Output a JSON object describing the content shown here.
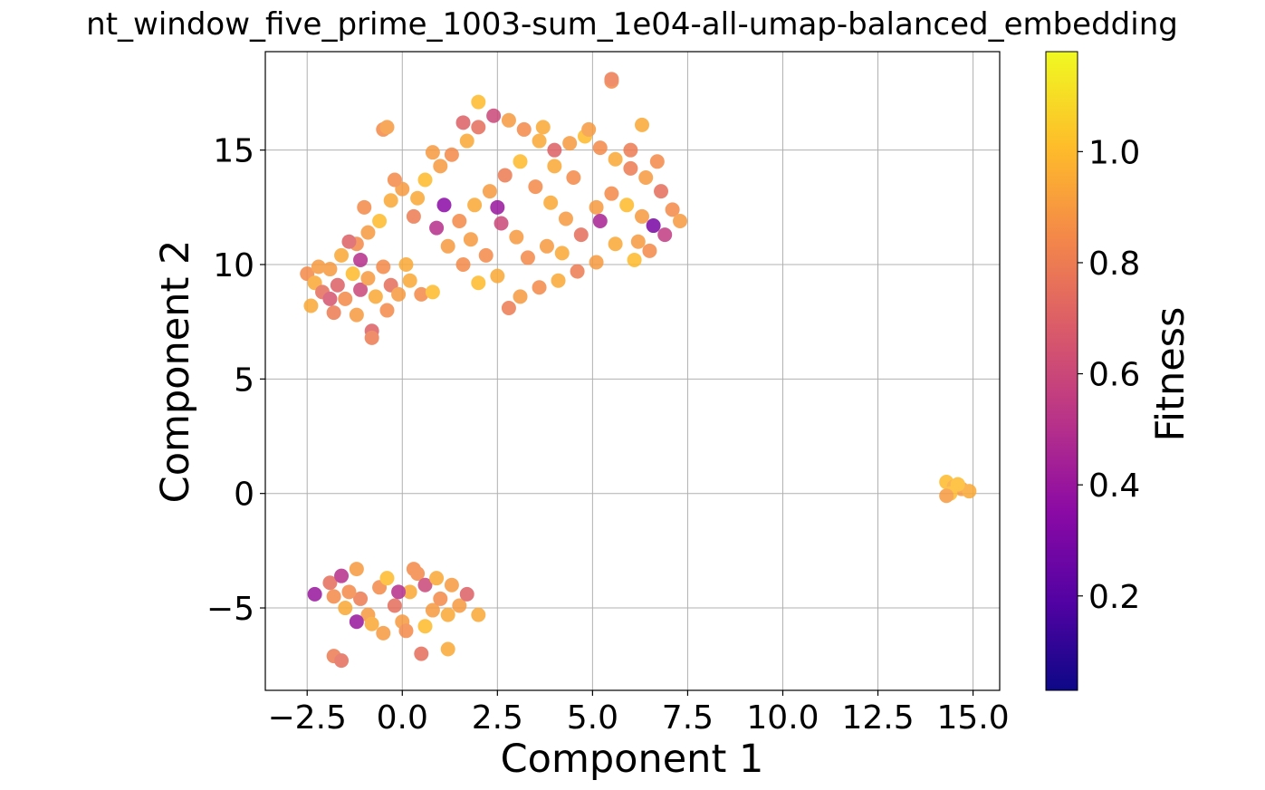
{
  "chart_data": {
    "type": "scatter",
    "title": "nt_window_five_prime_1003-sum_1e04-all-umap-balanced_embedding",
    "xlabel": "Component 1",
    "ylabel": "Component 2",
    "xlim": [
      -3.6,
      15.7
    ],
    "ylim": [
      -8.6,
      19.3
    ],
    "xticks": [
      -2.5,
      0.0,
      2.5,
      5.0,
      7.5,
      10.0,
      12.5,
      15.0
    ],
    "xtick_labels": [
      "−2.5",
      "0.0",
      "2.5",
      "5.0",
      "7.5",
      "10.0",
      "12.5",
      "15.0"
    ],
    "yticks": [
      -5,
      0,
      5,
      10,
      15
    ],
    "ytick_labels": [
      "−5",
      "0",
      "5",
      "10",
      "15"
    ],
    "grid": true,
    "colormap": "plasma",
    "colorbar": {
      "label": "Fitness",
      "range": [
        0.03,
        1.18
      ],
      "ticks": [
        0.2,
        0.4,
        0.6,
        0.8,
        1.0
      ],
      "tick_labels": [
        "0.2",
        "0.4",
        "0.6",
        "0.8",
        "1.0"
      ]
    },
    "clusters": [
      {
        "name": "",
        "points": [
          [
            -2.5,
            9.6,
            0.85
          ],
          [
            -2.3,
            9.2,
            0.95
          ],
          [
            -2.1,
            8.8,
            0.75
          ],
          [
            -2.4,
            8.2,
            0.95
          ],
          [
            -1.9,
            9.8,
            0.9
          ],
          [
            -1.7,
            9.1,
            0.7
          ],
          [
            -1.5,
            8.5,
            0.85
          ],
          [
            -1.3,
            9.6,
            1.0
          ],
          [
            -1.1,
            8.9,
            0.6
          ],
          [
            -0.9,
            9.4,
            0.9
          ],
          [
            -0.7,
            8.6,
            0.95
          ],
          [
            -0.5,
            9.9,
            0.85
          ],
          [
            -0.3,
            9.1,
            0.75
          ],
          [
            -0.1,
            8.7,
            0.9
          ],
          [
            0.2,
            9.3,
            0.95
          ],
          [
            0.5,
            8.7,
            0.85
          ],
          [
            0.8,
            8.8,
            1.0
          ],
          [
            -1.8,
            7.9,
            0.8
          ],
          [
            -1.2,
            7.8,
            0.9
          ],
          [
            -0.8,
            7.1,
            0.7
          ],
          [
            -0.8,
            6.8,
            0.8
          ],
          [
            -1.6,
            10.4,
            0.95
          ],
          [
            -1.2,
            10.9,
            0.85
          ],
          [
            -0.9,
            11.4,
            0.9
          ],
          [
            -1.4,
            11.0,
            0.7
          ],
          [
            -1.1,
            10.2,
            0.5
          ],
          [
            -2.2,
            9.9,
            0.9
          ],
          [
            -0.4,
            8.0,
            0.85
          ],
          [
            0.1,
            10.0,
            0.95
          ],
          [
            -1.9,
            8.5,
            0.65
          ],
          [
            -0.6,
            11.9,
            1.0
          ],
          [
            -1.0,
            12.5,
            0.85
          ],
          [
            -0.3,
            12.8,
            0.95
          ],
          [
            0.0,
            13.3,
            0.9
          ],
          [
            0.3,
            12.1,
            0.8
          ],
          [
            0.6,
            13.7,
            1.0
          ],
          [
            1.0,
            14.3,
            0.9
          ],
          [
            1.3,
            14.8,
            0.85
          ],
          [
            1.7,
            15.4,
            0.95
          ],
          [
            2.0,
            16.0,
            0.75
          ],
          [
            2.4,
            16.5,
            0.6
          ],
          [
            2.8,
            16.3,
            0.9
          ],
          [
            3.2,
            15.9,
            0.85
          ],
          [
            3.6,
            15.4,
            0.95
          ],
          [
            4.0,
            15.0,
            0.7
          ],
          [
            4.4,
            15.3,
            0.9
          ],
          [
            4.8,
            15.6,
            1.0
          ],
          [
            5.2,
            15.1,
            0.85
          ],
          [
            5.6,
            14.6,
            0.95
          ],
          [
            6.0,
            14.2,
            0.8
          ],
          [
            6.4,
            13.8,
            0.9
          ],
          [
            6.8,
            13.2,
            0.75
          ],
          [
            7.1,
            12.4,
            0.85
          ],
          [
            7.3,
            11.9,
            0.9
          ],
          [
            6.9,
            11.3,
            0.55
          ],
          [
            6.5,
            10.6,
            0.85
          ],
          [
            6.1,
            10.2,
            1.0
          ],
          [
            5.6,
            10.9,
            0.95
          ],
          [
            5.1,
            10.1,
            0.9
          ],
          [
            4.6,
            9.7,
            0.8
          ],
          [
            4.1,
            9.3,
            0.95
          ],
          [
            3.6,
            9.0,
            0.85
          ],
          [
            3.1,
            8.6,
            0.9
          ],
          [
            2.8,
            8.1,
            0.8
          ],
          [
            2.5,
            9.5,
            0.95
          ],
          [
            2.0,
            9.2,
            1.0
          ],
          [
            1.6,
            10.0,
            0.85
          ],
          [
            1.2,
            10.8,
            0.9
          ],
          [
            0.9,
            11.6,
            0.5
          ],
          [
            1.5,
            11.9,
            0.85
          ],
          [
            1.9,
            12.6,
            0.95
          ],
          [
            2.3,
            13.2,
            0.9
          ],
          [
            2.7,
            13.9,
            0.8
          ],
          [
            3.1,
            14.5,
            1.0
          ],
          [
            3.5,
            13.4,
            0.85
          ],
          [
            3.9,
            12.7,
            0.95
          ],
          [
            4.3,
            12.0,
            0.9
          ],
          [
            4.7,
            11.3,
            0.75
          ],
          [
            5.1,
            12.5,
            0.9
          ],
          [
            5.5,
            13.1,
            0.85
          ],
          [
            5.9,
            12.6,
            1.0
          ],
          [
            6.3,
            12.1,
            0.9
          ],
          [
            4.5,
            13.8,
            0.85
          ],
          [
            4.0,
            14.3,
            0.95
          ],
          [
            3.0,
            11.2,
            0.9
          ],
          [
            2.6,
            11.8,
            0.6
          ],
          [
            2.2,
            10.4,
            0.85
          ],
          [
            1.8,
            11.1,
            0.9
          ],
          [
            0.4,
            12.9,
            0.95
          ],
          [
            -0.2,
            13.7,
            0.85
          ],
          [
            -0.5,
            15.9,
            0.85
          ],
          [
            -0.4,
            16.0,
            0.9
          ],
          [
            2.0,
            17.1,
            1.0
          ],
          [
            5.5,
            18.0,
            0.85
          ],
          [
            5.5,
            18.1,
            0.8
          ],
          [
            6.3,
            16.1,
            0.95
          ],
          [
            6.0,
            15.0,
            0.8
          ],
          [
            6.7,
            14.5,
            0.85
          ],
          [
            0.8,
            14.9,
            0.9
          ],
          [
            1.6,
            16.2,
            0.7
          ],
          [
            3.7,
            16.0,
            0.95
          ],
          [
            4.9,
            15.9,
            0.9
          ],
          [
            2.5,
            12.5,
            0.4
          ],
          [
            3.3,
            10.3,
            0.85
          ],
          [
            3.8,
            10.8,
            0.9
          ],
          [
            4.2,
            10.5,
            0.95
          ],
          [
            6.6,
            11.7,
            0.3
          ],
          [
            5.2,
            11.9,
            0.45
          ],
          [
            1.1,
            12.6,
            0.35
          ],
          [
            6.2,
            11.0,
            0.9
          ]
        ]
      },
      {
        "name": "",
        "points": [
          [
            -2.3,
            -4.4,
            0.4
          ],
          [
            -1.9,
            -3.9,
            0.75
          ],
          [
            -1.6,
            -3.6,
            0.5
          ],
          [
            -1.2,
            -3.3,
            0.9
          ],
          [
            -1.8,
            -4.5,
            0.85
          ],
          [
            -1.5,
            -5.0,
            0.95
          ],
          [
            -1.1,
            -4.6,
            0.8
          ],
          [
            -0.9,
            -5.3,
            0.9
          ],
          [
            -0.6,
            -4.1,
            0.85
          ],
          [
            -0.4,
            -3.7,
            1.0
          ],
          [
            -0.2,
            -4.9,
            0.75
          ],
          [
            0.0,
            -5.6,
            0.9
          ],
          [
            0.2,
            -4.3,
            0.95
          ],
          [
            0.4,
            -3.5,
            0.85
          ],
          [
            0.6,
            -4.0,
            0.6
          ],
          [
            0.8,
            -5.1,
            0.9
          ],
          [
            1.0,
            -4.6,
            0.85
          ],
          [
            1.2,
            -5.3,
            0.95
          ],
          [
            1.5,
            -4.9,
            0.9
          ],
          [
            1.7,
            -4.4,
            0.7
          ],
          [
            2.0,
            -5.3,
            0.95
          ],
          [
            -0.5,
            -6.1,
            0.9
          ],
          [
            0.1,
            -6.0,
            0.85
          ],
          [
            0.6,
            -5.8,
            1.0
          ],
          [
            -0.8,
            -5.7,
            0.95
          ],
          [
            -1.2,
            -5.6,
            0.4
          ],
          [
            0.5,
            -7.0,
            0.75
          ],
          [
            1.2,
            -6.8,
            0.95
          ],
          [
            -1.8,
            -7.1,
            0.8
          ],
          [
            -1.6,
            -7.3,
            0.75
          ],
          [
            0.3,
            -3.3,
            0.85
          ],
          [
            -0.1,
            -4.3,
            0.5
          ],
          [
            0.9,
            -3.7,
            0.95
          ],
          [
            -1.4,
            -4.3,
            0.85
          ],
          [
            1.3,
            -4.0,
            0.9
          ]
        ]
      },
      {
        "name": "",
        "points": [
          [
            14.3,
            0.5,
            1.0
          ],
          [
            14.5,
            0.3,
            0.95
          ],
          [
            14.7,
            0.2,
            0.9
          ],
          [
            14.4,
            0.0,
            1.0
          ],
          [
            14.9,
            0.1,
            0.95
          ],
          [
            14.3,
            -0.1,
            0.9
          ],
          [
            14.6,
            0.4,
            1.0
          ]
        ]
      }
    ]
  }
}
